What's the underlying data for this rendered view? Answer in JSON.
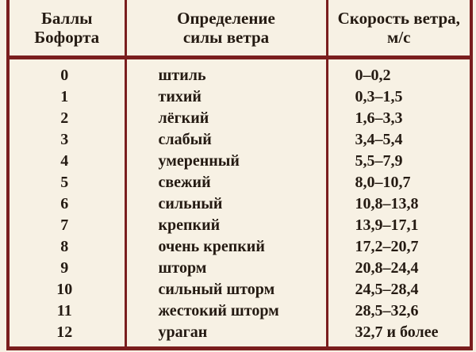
{
  "table": {
    "headers": [
      [
        "Баллы",
        "Бофорта"
      ],
      [
        "Определение",
        "силы ветра"
      ],
      [
        "Скорость ветра,",
        "м/с"
      ]
    ],
    "rows": [
      {
        "score": "0",
        "name": "штиль",
        "speed": "0–0,2"
      },
      {
        "score": "1",
        "name": "тихий",
        "speed": "0,3–1,5"
      },
      {
        "score": "2",
        "name": "лёгкий",
        "speed": "1,6–3,3"
      },
      {
        "score": "3",
        "name": "слабый",
        "speed": "3,4–5,4"
      },
      {
        "score": "4",
        "name": "умеренный",
        "speed": "5,5–7,9"
      },
      {
        "score": "5",
        "name": "свежий",
        "speed": "8,0–10,7"
      },
      {
        "score": "6",
        "name": "сильный",
        "speed": "10,8–13,8"
      },
      {
        "score": "7",
        "name": "крепкий",
        "speed": "13,9–17,1"
      },
      {
        "score": "8",
        "name": "очень крепкий",
        "speed": "17,2–20,7"
      },
      {
        "score": "9",
        "name": "шторм",
        "speed": "20,8–24,4"
      },
      {
        "score": "10",
        "name": "сильный шторм",
        "speed": "24,5–28,4"
      },
      {
        "score": "11",
        "name": "жестокий шторм",
        "speed": "28,5–32,6"
      },
      {
        "score": "12",
        "name": "ураган",
        "speed": "32,7 и более"
      }
    ]
  },
  "colors": {
    "rule": "#7a1e1e",
    "paper": "#f7f1e4",
    "text": "#241a12"
  }
}
